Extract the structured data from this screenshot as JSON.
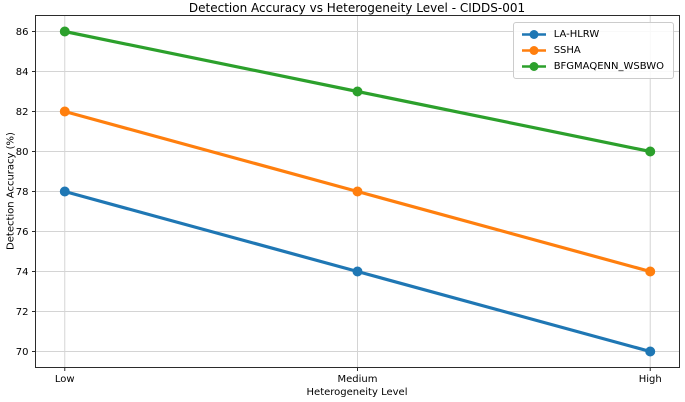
{
  "chart_data": {
    "type": "line",
    "title": "Detection Accuracy vs Heterogeneity Level - CIDDS-001",
    "xlabel": "Heterogeneity Level",
    "ylabel": "Detection Accuracy (%)",
    "categories": [
      "Low",
      "Medium",
      "High"
    ],
    "series": [
      {
        "name": "LA-HLRW",
        "color": "#1f77b4",
        "values": [
          78,
          74,
          70
        ]
      },
      {
        "name": "SSHA",
        "color": "#ff7f0e",
        "values": [
          82,
          78,
          74
        ]
      },
      {
        "name": "BFGMAQENN_WSBWO",
        "color": "#2ca02c",
        "values": [
          86,
          83,
          80
        ]
      }
    ],
    "yticks": [
      70,
      72,
      74,
      76,
      78,
      80,
      82,
      84,
      86
    ],
    "ylim": [
      69.2,
      86.8
    ],
    "grid": true,
    "legend_position": "upper right",
    "grid_color": "#d4d4d4",
    "axis_color": "#2b2b2b",
    "text_color": "#000000"
  }
}
